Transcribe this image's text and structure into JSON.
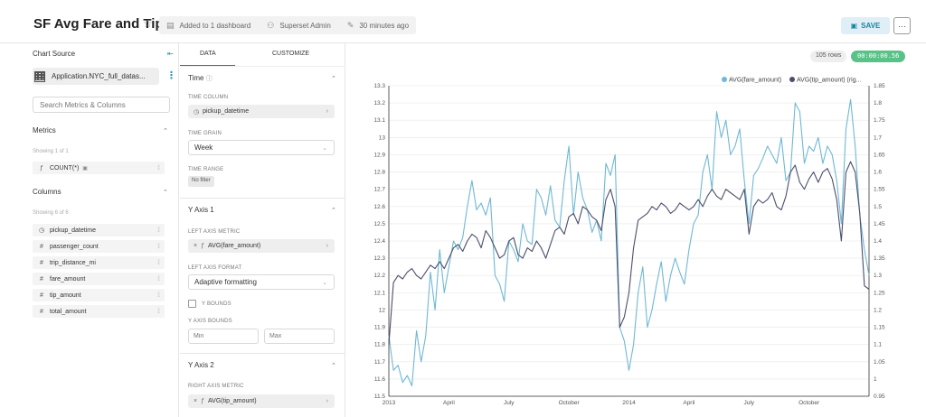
{
  "header": {
    "title": "SF Avg Fare and Tip",
    "dashboards": "Added to 1 dashboard",
    "owner": "Superset Admin",
    "modified": "30 minutes ago",
    "save_label": "SAVE",
    "more_label": "···"
  },
  "datasource": {
    "heading": "Chart Source",
    "name": "Application.NYC_full_datas...",
    "search_placeholder": "Search Metrics & Columns",
    "metrics_title": "Metrics",
    "metrics_showing": "Showing 1 of 1",
    "metrics": [
      {
        "label": "COUNT(*)",
        "icon": "f(x)"
      }
    ],
    "columns_title": "Columns",
    "columns_showing": "Showing 6 of 6",
    "columns": [
      {
        "label": "pickup_datetime",
        "icon": "clock-icon"
      },
      {
        "label": "passenger_count",
        "icon": "#"
      },
      {
        "label": "trip_distance_mi",
        "icon": "#"
      },
      {
        "label": "fare_amount",
        "icon": "#"
      },
      {
        "label": "tip_amount",
        "icon": "#"
      },
      {
        "label": "total_amount",
        "icon": "#"
      }
    ]
  },
  "controls": {
    "tabs": [
      "DATA",
      "CUSTOMIZE"
    ],
    "time_section": "Time",
    "time_column_label": "TIME COLUMN",
    "time_column_value": "pickup_datetime",
    "time_grain_label": "TIME GRAIN",
    "time_grain_value": "Week",
    "time_range_label": "TIME RANGE",
    "time_range_value": "No filter",
    "y_axis1_section": "Y Axis 1",
    "left_metric_label": "LEFT AXIS METRIC",
    "left_metric_value": "AVG(fare_amount)",
    "left_format_label": "LEFT AXIS FORMAT",
    "left_format_value": "Adaptive formatting",
    "y_bounds_label": "Y BOUNDS",
    "y_axis_bounds_label": "Y AXIS BOUNDS",
    "min_placeholder": "Min",
    "max_placeholder": "Max",
    "y_axis2_section": "Y Axis 2",
    "right_metric_label": "RIGHT AXIS METRIC",
    "right_metric_value": "AVG(tip_amount)"
  },
  "chart_status": {
    "rows": "105 rows",
    "timer": "00:00:00.56"
  },
  "chart_data": {
    "type": "line",
    "x_ticks": [
      "2013",
      "April",
      "July",
      "October",
      "2014",
      "April",
      "July",
      "October"
    ],
    "y_left_ticks": [
      "11.5",
      "11.6",
      "11.7",
      "11.8",
      "11.9",
      "12",
      "12.1",
      "12.2",
      "12.3",
      "12.4",
      "12.5",
      "12.6",
      "12.7",
      "12.8",
      "12.9",
      "13",
      "13.1",
      "13.2",
      "13.3"
    ],
    "y_right_ticks": [
      "0.95",
      "1",
      "1.05",
      "1.1",
      "1.15",
      "1.2",
      "1.25",
      "1.3",
      "1.35",
      "1.4",
      "1.45",
      "1.5",
      "1.55",
      "1.6",
      "1.65",
      "1.7",
      "1.75",
      "1.8",
      "1.85"
    ],
    "ylim_left": [
      11.5,
      13.3
    ],
    "ylim_right": [
      0.95,
      1.85
    ],
    "grid": true,
    "legend_position": "top-right",
    "series": [
      {
        "name": "AVG(fare_amount)",
        "axis": "left",
        "color": "#6fb8d6",
        "values": [
          11.85,
          11.65,
          11.68,
          11.58,
          11.62,
          11.56,
          11.88,
          11.7,
          11.85,
          12.22,
          12.0,
          12.35,
          12.1,
          12.25,
          12.4,
          12.35,
          12.42,
          12.6,
          12.75,
          12.58,
          12.62,
          12.55,
          12.65,
          12.2,
          12.15,
          12.05,
          12.4,
          12.35,
          12.28,
          12.5,
          12.4,
          12.38,
          12.7,
          12.65,
          12.55,
          12.72,
          12.52,
          12.48,
          12.75,
          12.95,
          12.55,
          12.8,
          12.65,
          12.58,
          12.45,
          12.52,
          12.4,
          12.85,
          12.78,
          12.9,
          11.9,
          11.82,
          11.65,
          11.8,
          12.1,
          12.25,
          11.9,
          12.0,
          12.15,
          12.28,
          12.05,
          12.2,
          12.3,
          12.22,
          12.15,
          12.35,
          12.5,
          12.55,
          12.8,
          12.9,
          12.7,
          13.15,
          13.0,
          13.1,
          12.9,
          12.95,
          13.05,
          12.75,
          12.5,
          12.78,
          12.82,
          12.88,
          12.95,
          12.9,
          12.85,
          13.0,
          12.75,
          12.8,
          13.2,
          13.15,
          12.85,
          12.95,
          12.92,
          13.0,
          12.85,
          12.95,
          12.9,
          12.75,
          12.5,
          13.05,
          13.22,
          12.95,
          12.55,
          12.35,
          12.2
        ]
      },
      {
        "name": "AVG(tip_amount) (rig...",
        "axis": "right",
        "color": "#4b4f6b",
        "values": [
          1.1,
          1.28,
          1.3,
          1.29,
          1.31,
          1.32,
          1.3,
          1.29,
          1.31,
          1.33,
          1.32,
          1.34,
          1.32,
          1.35,
          1.38,
          1.39,
          1.37,
          1.4,
          1.42,
          1.41,
          1.38,
          1.43,
          1.41,
          1.38,
          1.35,
          1.36,
          1.4,
          1.41,
          1.36,
          1.35,
          1.38,
          1.37,
          1.4,
          1.38,
          1.35,
          1.39,
          1.43,
          1.44,
          1.42,
          1.47,
          1.48,
          1.45,
          1.5,
          1.49,
          1.47,
          1.46,
          1.43,
          1.52,
          1.55,
          1.5,
          1.15,
          1.18,
          1.25,
          1.38,
          1.46,
          1.47,
          1.48,
          1.5,
          1.49,
          1.51,
          1.5,
          1.48,
          1.49,
          1.51,
          1.5,
          1.49,
          1.5,
          1.52,
          1.5,
          1.53,
          1.55,
          1.53,
          1.52,
          1.55,
          1.54,
          1.53,
          1.52,
          1.55,
          1.42,
          1.5,
          1.52,
          1.51,
          1.52,
          1.54,
          1.5,
          1.49,
          1.53,
          1.6,
          1.62,
          1.57,
          1.55,
          1.58,
          1.6,
          1.57,
          1.6,
          1.61,
          1.58,
          1.52,
          1.4,
          1.6,
          1.63,
          1.6,
          1.48,
          1.27,
          1.26
        ]
      }
    ]
  }
}
